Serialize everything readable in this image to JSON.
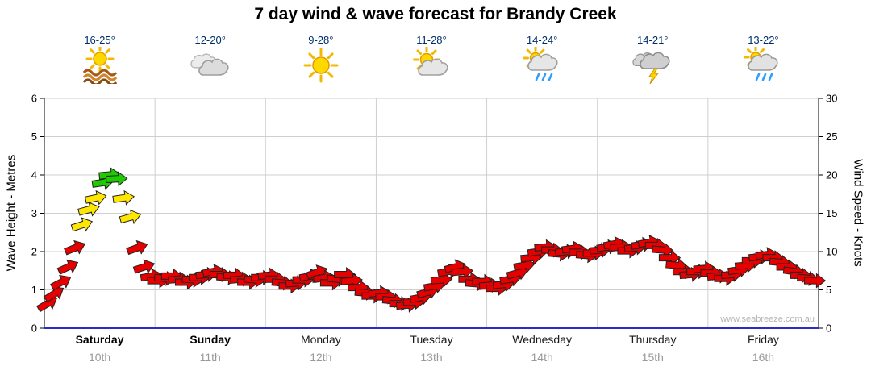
{
  "title": "7 day wind & wave forecast for Brandy Creek",
  "watermark": "www.seabreeze.com.au",
  "days": [
    {
      "temp": "16-25°",
      "icon": "sun-haze-icon",
      "name": "Saturday",
      "date": "10th",
      "weekend": true
    },
    {
      "temp": "12-20°",
      "icon": "cloudy-icon",
      "name": "Sunday",
      "date": "11th",
      "weekend": true
    },
    {
      "temp": "9-28°",
      "icon": "sunny-icon",
      "name": "Monday",
      "date": "12th",
      "weekend": false
    },
    {
      "temp": "11-28°",
      "icon": "partly-cloudy-icon",
      "name": "Tuesday",
      "date": "13th",
      "weekend": false
    },
    {
      "temp": "14-24°",
      "icon": "sun-showers-icon",
      "name": "Wednesday",
      "date": "14th",
      "weekend": false
    },
    {
      "temp": "14-21°",
      "icon": "thunderstorm-icon",
      "name": "Thursday",
      "date": "15th",
      "weekend": false
    },
    {
      "temp": "13-22°",
      "icon": "cloudy-showers-icon",
      "name": "Friday",
      "date": "16th",
      "weekend": false
    }
  ],
  "chart_data": {
    "type": "scatter",
    "subtype": "wind-arrow-timeseries",
    "title": "7 day wind & wave forecast for Brandy Creek",
    "y_left": {
      "label": "Wave Height - Metres",
      "range": [
        0,
        6
      ],
      "ticks": [
        0,
        1,
        2,
        3,
        4,
        5,
        6
      ]
    },
    "y_right": {
      "label": "Wind Speed - Knots",
      "range": [
        0,
        30
      ],
      "ticks": [
        0,
        5,
        10,
        15,
        20,
        25,
        30
      ]
    },
    "x": {
      "categories": [
        "Saturday",
        "Sunday",
        "Monday",
        "Tuesday",
        "Wednesday",
        "Thursday",
        "Friday"
      ],
      "dates": [
        "10th",
        "11th",
        "12th",
        "13th",
        "14th",
        "15th",
        "16th"
      ],
      "total_hours": 168,
      "grid": "vertical lines at day boundaries"
    },
    "legend": "arrow color encodes wind strength, arrow angle encodes wind direction",
    "arrow_colors": {
      "red": "#e60000",
      "yellow": "#ffe600",
      "green": "#1ecb00",
      "thresholds_knots": {
        "yellow_from": 13,
        "green_from": 18.5
      }
    },
    "baseline_color": "#2b2bcc",
    "point_format": [
      "hours_from_start",
      "wind_speed_knots",
      "direction_deg_ccw_from_east"
    ],
    "series": [
      {
        "name": "Wind speed (knots)",
        "points": [
          [
            0.7,
            3.2,
            30
          ],
          [
            2.2,
            4.5,
            32
          ],
          [
            3.7,
            6,
            28
          ],
          [
            5.2,
            8,
            25
          ],
          [
            6.7,
            10.5,
            22
          ],
          [
            8.2,
            13.5,
            18
          ],
          [
            9.7,
            15.5,
            15
          ],
          [
            11.2,
            17,
            12
          ],
          [
            12.7,
            19,
            8
          ],
          [
            14.2,
            20,
            5
          ],
          [
            15.7,
            19.5,
            3
          ],
          [
            17.2,
            17,
            8
          ],
          [
            18.7,
            14.5,
            15
          ],
          [
            20.2,
            10.5,
            20
          ],
          [
            21.7,
            8,
            18
          ],
          [
            23.2,
            6.8,
            10
          ],
          [
            24.7,
            6.2,
            0
          ],
          [
            26.2,
            6.5,
            -5
          ],
          [
            27.7,
            6.8,
            0
          ],
          [
            29.2,
            6.4,
            5
          ],
          [
            30.7,
            6,
            0
          ],
          [
            32.2,
            6.3,
            -5
          ],
          [
            33.7,
            6.6,
            0
          ],
          [
            35.2,
            7,
            5
          ],
          [
            36.7,
            7.4,
            10
          ],
          [
            38.2,
            7,
            0
          ],
          [
            39.7,
            6.6,
            -5
          ],
          [
            41.2,
            6.9,
            0
          ],
          [
            42.7,
            6.4,
            5
          ],
          [
            44.2,
            6,
            0
          ],
          [
            45.7,
            6.3,
            -5
          ],
          [
            47.2,
            6.6,
            0
          ],
          [
            48.7,
            6.9,
            5
          ],
          [
            50.2,
            6.4,
            0
          ],
          [
            51.7,
            5.9,
            -5
          ],
          [
            53.2,
            5.5,
            0
          ],
          [
            54.7,
            5.9,
            5
          ],
          [
            56.2,
            6.3,
            0
          ],
          [
            57.7,
            6.8,
            10
          ],
          [
            59.2,
            7.3,
            20
          ],
          [
            60.7,
            6.6,
            10
          ],
          [
            62.2,
            5.9,
            0
          ],
          [
            63.7,
            6.4,
            -5
          ],
          [
            65.2,
            7,
            0
          ],
          [
            66.7,
            6.2,
            5
          ],
          [
            68.2,
            5.3,
            0
          ],
          [
            69.7,
            4.6,
            -5
          ],
          [
            71.2,
            4.2,
            0
          ],
          [
            72.7,
            4.6,
            5
          ],
          [
            74.2,
            4.1,
            0
          ],
          [
            75.7,
            3.6,
            -5
          ],
          [
            77.2,
            3.2,
            0
          ],
          [
            78.7,
            3,
            5
          ],
          [
            80.2,
            3.4,
            0
          ],
          [
            81.7,
            4,
            10
          ],
          [
            83.2,
            4.7,
            15
          ],
          [
            84.7,
            5.5,
            10
          ],
          [
            86.2,
            6.3,
            5
          ],
          [
            87.7,
            7.4,
            10
          ],
          [
            89.2,
            8,
            15
          ],
          [
            90.7,
            7.4,
            5
          ],
          [
            92.2,
            6.4,
            0
          ],
          [
            93.7,
            5.8,
            -5
          ],
          [
            95.2,
            6.1,
            0
          ],
          [
            96.7,
            5.6,
            5
          ],
          [
            98.2,
            5.2,
            0
          ],
          [
            99.7,
            5.7,
            5
          ],
          [
            101.2,
            6.4,
            10
          ],
          [
            102.7,
            7.2,
            15
          ],
          [
            104.2,
            8.2,
            10
          ],
          [
            105.7,
            9.2,
            5
          ],
          [
            107.2,
            10,
            8
          ],
          [
            108.7,
            10.6,
            5
          ],
          [
            110.2,
            10.2,
            0
          ],
          [
            111.7,
            9.7,
            -5
          ],
          [
            113.2,
            10,
            5
          ],
          [
            114.7,
            10.4,
            8
          ],
          [
            116.2,
            9.9,
            0
          ],
          [
            117.7,
            9.5,
            -5
          ],
          [
            119.2,
            9.8,
            0
          ],
          [
            120.7,
            10.2,
            5
          ],
          [
            122.2,
            10.6,
            8
          ],
          [
            123.7,
            11,
            10
          ],
          [
            125.2,
            10.6,
            5
          ],
          [
            126.7,
            10.1,
            0
          ],
          [
            128.2,
            10.5,
            5
          ],
          [
            129.7,
            10.9,
            8
          ],
          [
            131.2,
            11.2,
            10
          ],
          [
            132.7,
            10.8,
            0
          ],
          [
            134.2,
            10.2,
            -5
          ],
          [
            135.7,
            9.2,
            0
          ],
          [
            137.2,
            8.2,
            -5
          ],
          [
            138.7,
            7.4,
            0
          ],
          [
            140.2,
            7,
            5
          ],
          [
            141.7,
            7.4,
            0
          ],
          [
            143.2,
            7.8,
            5
          ],
          [
            144.7,
            7.2,
            0
          ],
          [
            146.2,
            6.8,
            5
          ],
          [
            147.7,
            6.5,
            0
          ],
          [
            149.2,
            7,
            5
          ],
          [
            150.7,
            7.6,
            8
          ],
          [
            152.2,
            8.2,
            5
          ],
          [
            153.7,
            8.8,
            0
          ],
          [
            155.2,
            9.3,
            5
          ],
          [
            156.7,
            9.6,
            8
          ],
          [
            158.2,
            9.2,
            0
          ],
          [
            159.7,
            8.6,
            -5
          ],
          [
            161.2,
            8,
            0
          ],
          [
            162.7,
            7.4,
            -8
          ],
          [
            164.2,
            6.9,
            0
          ],
          [
            165.7,
            6.5,
            -5
          ],
          [
            167.2,
            6.2,
            0
          ]
        ]
      }
    ]
  }
}
